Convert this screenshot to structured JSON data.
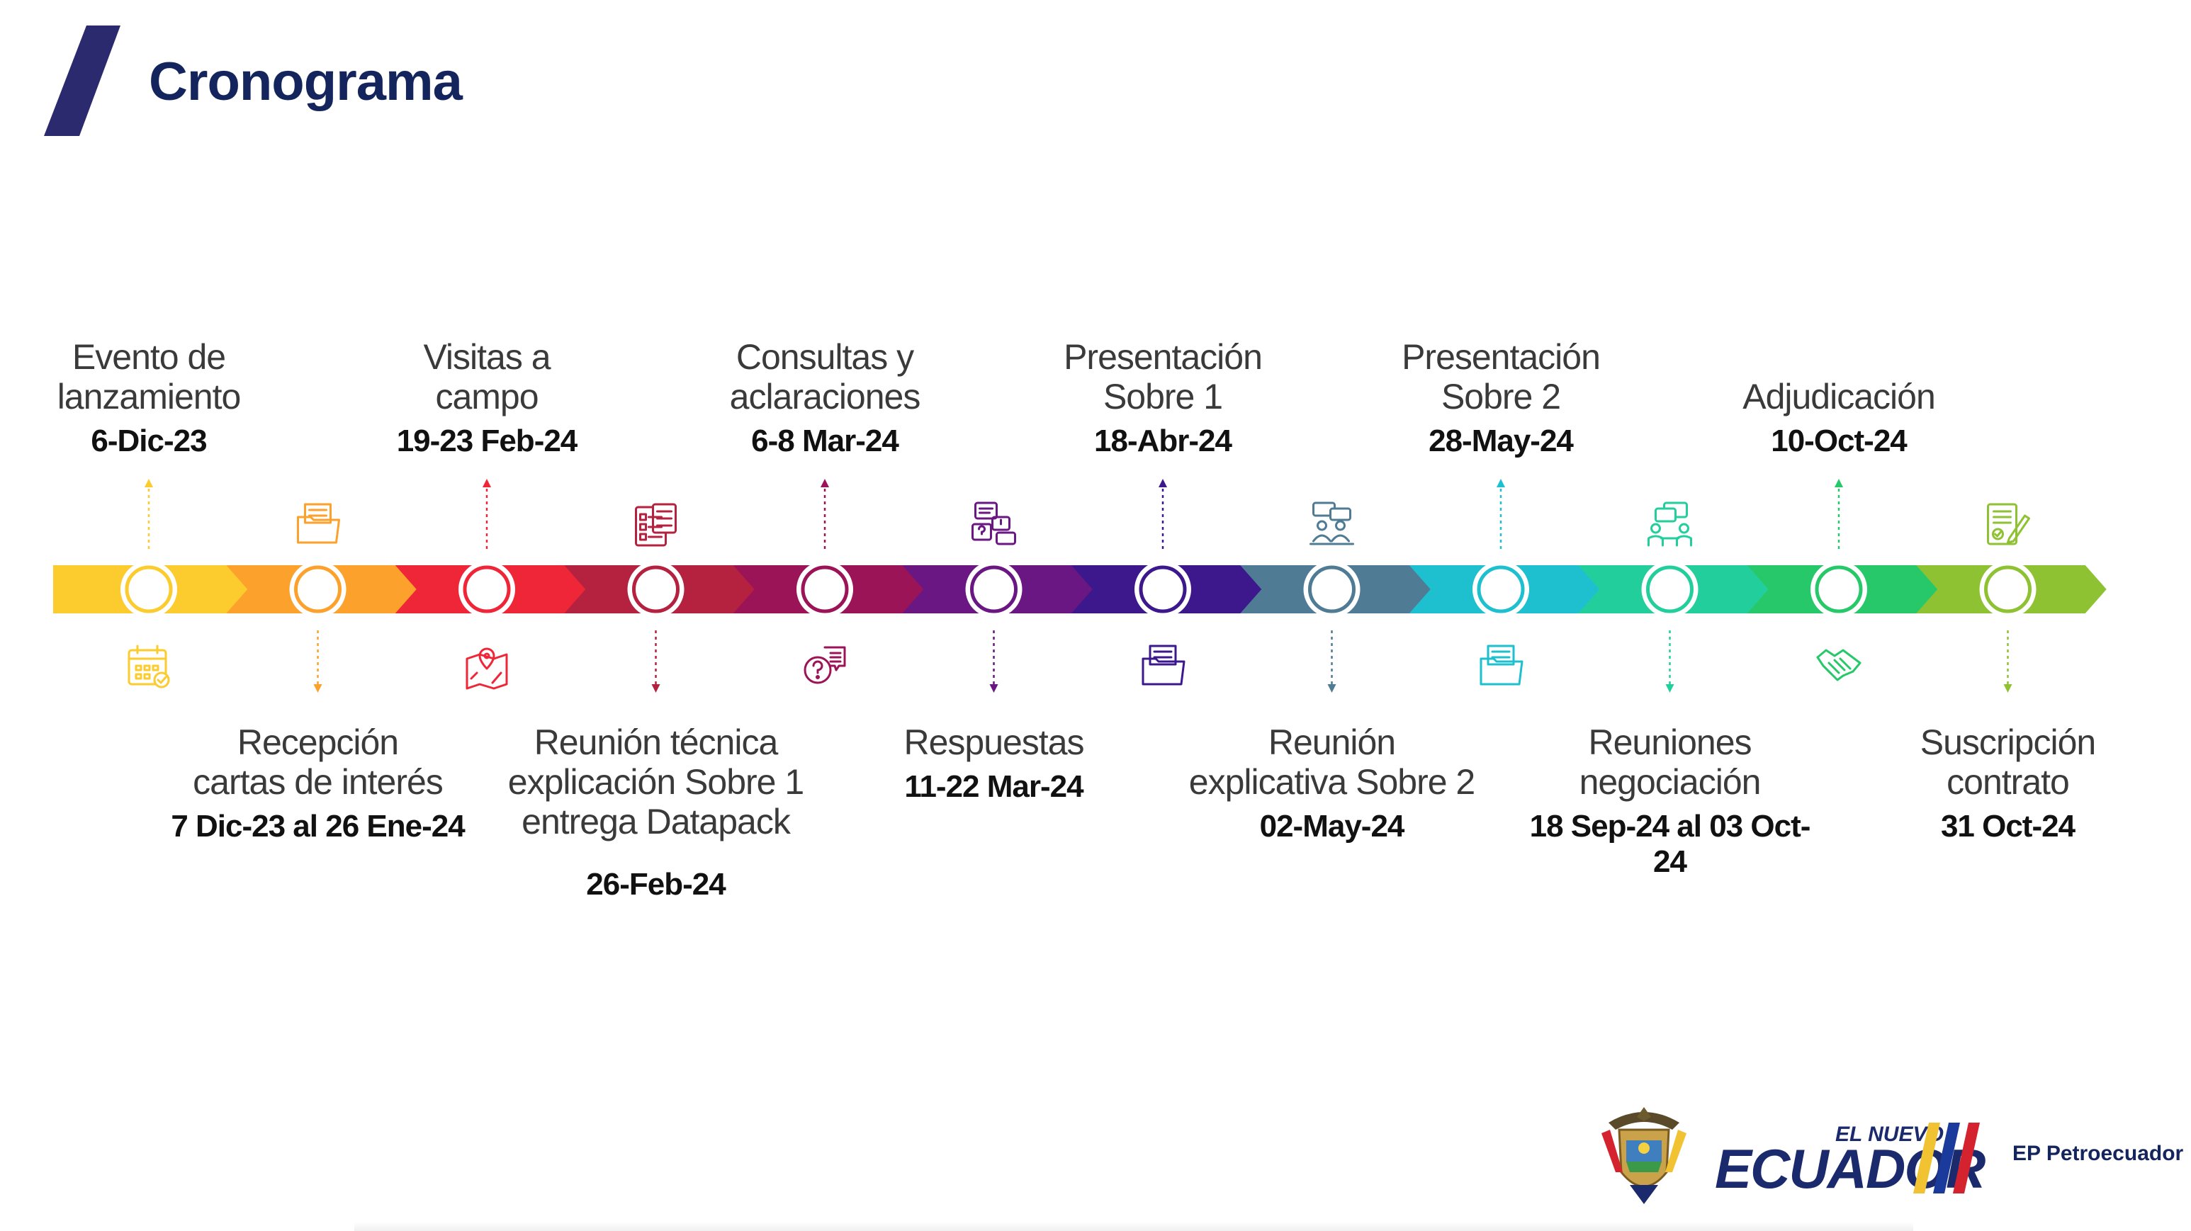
{
  "title": "Cronograma",
  "colors": {
    "title": "#14245c",
    "segments": [
      "#fccc2e",
      "#fca12c",
      "#ef2538",
      "#b5223f",
      "#9b1458",
      "#6a1783",
      "#3c188c",
      "#4f7b95",
      "#1ec0cf",
      "#22cf9c",
      "#27c86a",
      "#8fc233"
    ]
  },
  "events": [
    {
      "label": [
        "Evento de",
        "lanzamiento"
      ],
      "date": "6-Dic-23",
      "position": "top",
      "icon": "calendar-check-icon"
    },
    {
      "label": [
        "Recepción",
        "cartas de interés"
      ],
      "date": "7 Dic-23 al 26 Ene-24",
      "position": "bottom",
      "icon": "folder-documents-icon"
    },
    {
      "label": [
        "Visitas a",
        "campo"
      ],
      "date": "19-23 Feb-24",
      "position": "top",
      "icon": "map-pin-icon"
    },
    {
      "label": [
        "Reunión técnica",
        "explicación Sobre 1",
        "entrega Datapack"
      ],
      "date": "26-Feb-24",
      "position": "bottom",
      "icon": "checklist-icon"
    },
    {
      "label": [
        "Consultas y",
        "aclaraciones"
      ],
      "date": "6-8 Mar-24",
      "position": "top",
      "icon": "question-chat-icon"
    },
    {
      "label": [
        "Respuestas"
      ],
      "date": "11-22 Mar-24",
      "position": "bottom",
      "icon": "chat-bubbles-icon"
    },
    {
      "label": [
        "Presentación",
        "Sobre 1"
      ],
      "date": "18-Abr-24",
      "position": "top",
      "icon": "folder-icon"
    },
    {
      "label": [
        "Reunión",
        "explicativa Sobre 2"
      ],
      "date": "02-May-24",
      "position": "bottom",
      "icon": "meeting-icon"
    },
    {
      "label": [
        "Presentación",
        "Sobre 2"
      ],
      "date": "28-May-24",
      "position": "top",
      "icon": "folder-icon"
    },
    {
      "label": [
        "Reuniones",
        "negociación"
      ],
      "date": "18 Sep-24 al 03 Oct-24",
      "position": "bottom",
      "icon": "negotiation-icon"
    },
    {
      "label": [
        "Adjudicación"
      ],
      "date": "10-Oct-24",
      "position": "top",
      "icon": "handshake-icon"
    },
    {
      "label": [
        "Suscripción",
        "contrato"
      ],
      "date": "31 Oct-24",
      "position": "bottom",
      "icon": "contract-sign-icon"
    }
  ],
  "logo": {
    "brand_top": "EL NUEVO",
    "brand_main": "ECUADOR",
    "org": "EP Petroecuador"
  }
}
